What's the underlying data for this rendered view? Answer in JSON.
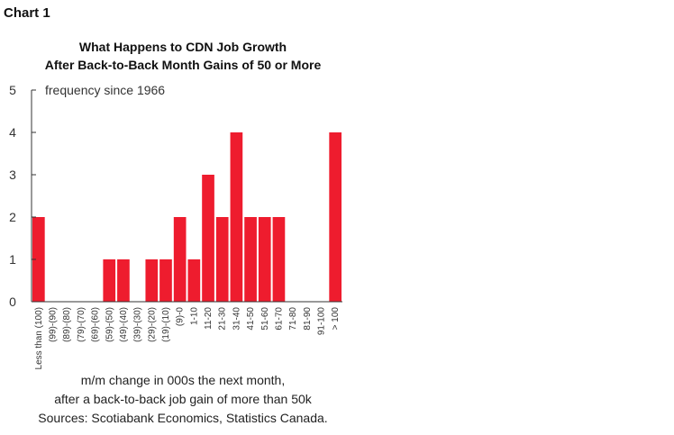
{
  "chart_label": "Chart 1",
  "chart_data": {
    "type": "bar",
    "title": [
      "What Happens to CDN Job Growth",
      "After Back-to-Back Month Gains of 50 or More"
    ],
    "subtitle": "frequency since 1966",
    "categories": [
      "Less than (100)",
      "(99)-(90)",
      "(89)-(80)",
      "(79)-(70)",
      "(69)-(60)",
      "(59)-(50)",
      "(49)-(40)",
      "(39)-(30)",
      "(29)-(20)",
      "(19)-(10)",
      "(9)-0",
      "1-10",
      "11-20",
      "21-30",
      "31-40",
      "41-50",
      "51-60",
      "61-70",
      "71-80",
      "81-90",
      "91-100",
      "> 100"
    ],
    "values": [
      2,
      0,
      0,
      0,
      0,
      1,
      1,
      0,
      1,
      1,
      2,
      1,
      3,
      2,
      4,
      2,
      2,
      2,
      0,
      0,
      0,
      4
    ],
    "ylim": [
      0,
      5
    ],
    "yticks": [
      0,
      1,
      2,
      3,
      4,
      5
    ],
    "bar_color": "#ee1c2e",
    "xlabel": [
      "m/m change in 000s the next month,",
      "after a  back-to-back job gain of more than 50k"
    ],
    "source": "Sources: Scotiabank Economics, Statistics Canada."
  }
}
